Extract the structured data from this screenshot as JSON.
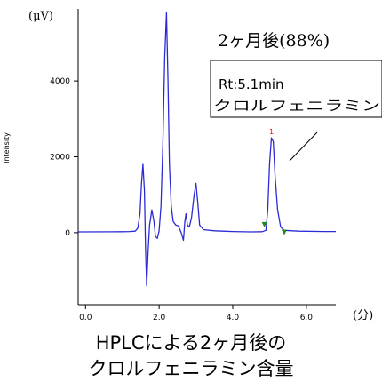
{
  "chart_data": {
    "type": "line",
    "title": "",
    "ylabel": "Intensity",
    "y_unit_label": "(μV)",
    "x_unit_label": "(分)",
    "xlim": [
      -0.2,
      6.8
    ],
    "ylim": [
      -1900,
      5900
    ],
    "x_ticks": [
      0.0,
      2.0,
      4.0,
      6.0
    ],
    "x_tick_labels": [
      "0.0",
      "2.0",
      "4.0",
      "6.0"
    ],
    "y_ticks": [
      0,
      2000,
      4000
    ],
    "y_tick_labels": [
      "0",
      "2000",
      "4000"
    ],
    "grid": false,
    "series": [
      {
        "color": "#2b2bd6",
        "points": [
          [
            -0.2,
            20
          ],
          [
            1.0,
            25
          ],
          [
            1.2,
            30
          ],
          [
            1.35,
            40
          ],
          [
            1.42,
            120
          ],
          [
            1.48,
            500
          ],
          [
            1.52,
            1300
          ],
          [
            1.56,
            1800
          ],
          [
            1.6,
            1100
          ],
          [
            1.63,
            -400
          ],
          [
            1.66,
            -1400
          ],
          [
            1.7,
            -500
          ],
          [
            1.74,
            200
          ],
          [
            1.8,
            600
          ],
          [
            1.86,
            300
          ],
          [
            1.9,
            -100
          ],
          [
            1.95,
            -150
          ],
          [
            2.0,
            50
          ],
          [
            2.05,
            700
          ],
          [
            2.1,
            2300
          ],
          [
            2.15,
            4600
          ],
          [
            2.2,
            5800
          ],
          [
            2.24,
            4000
          ],
          [
            2.28,
            1800
          ],
          [
            2.33,
            700
          ],
          [
            2.38,
            300
          ],
          [
            2.45,
            200
          ],
          [
            2.52,
            180
          ],
          [
            2.6,
            0
          ],
          [
            2.66,
            -200
          ],
          [
            2.7,
            300
          ],
          [
            2.73,
            500
          ],
          [
            2.77,
            200
          ],
          [
            2.82,
            150
          ],
          [
            2.88,
            400
          ],
          [
            2.95,
            1000
          ],
          [
            3.0,
            1300
          ],
          [
            3.05,
            800
          ],
          [
            3.1,
            200
          ],
          [
            3.2,
            80
          ],
          [
            3.5,
            50
          ],
          [
            4.0,
            30
          ],
          [
            4.5,
            20
          ],
          [
            4.8,
            25
          ],
          [
            4.9,
            60
          ],
          [
            4.95,
            600
          ],
          [
            5.0,
            1800
          ],
          [
            5.05,
            2500
          ],
          [
            5.1,
            2400
          ],
          [
            5.15,
            1500
          ],
          [
            5.22,
            600
          ],
          [
            5.3,
            150
          ],
          [
            5.4,
            60
          ],
          [
            5.8,
            40
          ],
          [
            6.5,
            30
          ],
          [
            6.8,
            30
          ]
        ]
      }
    ],
    "peak_label": "1",
    "peak_label_color": "#ff0000",
    "peak_label_x": 5.05,
    "peak_label_y": 2600,
    "markers": [
      {
        "x": 4.86,
        "y": 210,
        "color": "#1e8a1e"
      },
      {
        "x": 5.4,
        "y": 10,
        "color": "#1e8a1e"
      }
    ]
  },
  "annotation": {
    "headline": "2ヶ月後(88%)",
    "rt": "Rt:5.1min",
    "compound": "クロルフェニラミン"
  },
  "caption": {
    "line1": "HPLCによる2ヶ月後の",
    "line2": "クロルフェニラミン含量"
  }
}
